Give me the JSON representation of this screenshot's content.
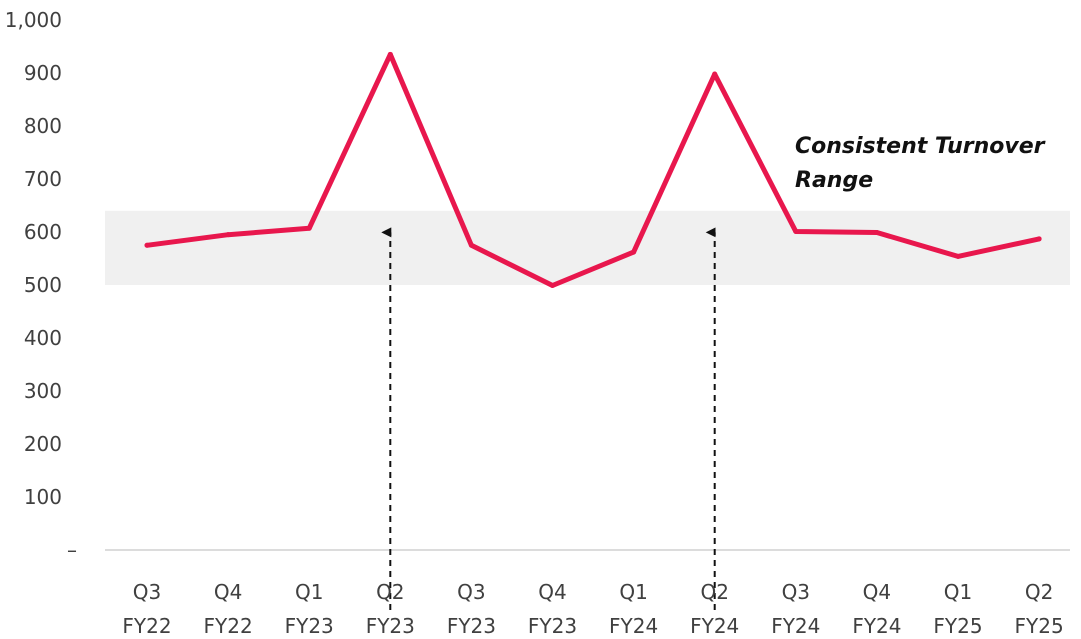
{
  "chart_data": {
    "type": "line",
    "title": "",
    "xlabel": "",
    "ylabel": "",
    "categories": [
      {
        "line1": "Q3",
        "line2": "FY22"
      },
      {
        "line1": "Q4",
        "line2": "FY22"
      },
      {
        "line1": "Q1",
        "line2": "FY23"
      },
      {
        "line1": "Q2",
        "line2": "FY23"
      },
      {
        "line1": "Q3",
        "line2": "FY23"
      },
      {
        "line1": "Q4",
        "line2": "FY23"
      },
      {
        "line1": "Q1",
        "line2": "FY24"
      },
      {
        "line1": "Q2",
        "line2": "FY24"
      },
      {
        "line1": "Q3",
        "line2": "FY24"
      },
      {
        "line1": "Q4",
        "line2": "FY24"
      },
      {
        "line1": "Q1",
        "line2": "FY25"
      },
      {
        "line1": "Q2",
        "line2": "FY25"
      }
    ],
    "values": [
      575,
      595,
      607,
      935,
      575,
      499,
      562,
      898,
      601,
      599,
      554,
      587
    ],
    "ylim": [
      0,
      1000
    ],
    "yticks": [
      {
        "value": 0,
        "label": "–"
      },
      {
        "value": 100,
        "label": "100"
      },
      {
        "value": 200,
        "label": "200"
      },
      {
        "value": 300,
        "label": "300"
      },
      {
        "value": 400,
        "label": "400"
      },
      {
        "value": 500,
        "label": "500"
      },
      {
        "value": 600,
        "label": "600"
      },
      {
        "value": 700,
        "label": "700"
      },
      {
        "value": 800,
        "label": "800"
      },
      {
        "value": 900,
        "label": "900"
      },
      {
        "value": 1000,
        "label": "1,000"
      }
    ],
    "grid": false,
    "legend": "none",
    "band": {
      "from": 500,
      "to": 640,
      "color": "#f0f0f0"
    },
    "annotations": [
      {
        "lines": [
          "Consistent Turnover",
          "Range"
        ]
      }
    ],
    "arrows": [
      {
        "category_index": 3,
        "from_value": 0,
        "to_value": 605
      },
      {
        "category_index": 7,
        "from_value": 0,
        "to_value": 605
      }
    ],
    "colors": {
      "line": "#e8174d",
      "axis": "#d0d0d0",
      "arrow": "#111111",
      "tick_text": "#404040"
    }
  }
}
